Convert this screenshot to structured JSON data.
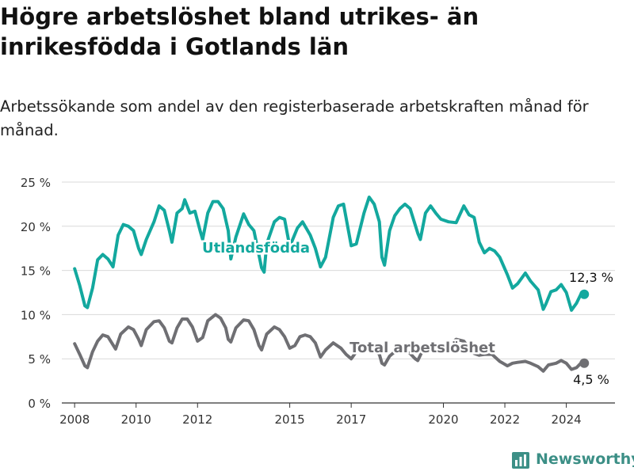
{
  "title": "Högre arbetslöshet bland utrikes- än inrikesfödda i Gotlands län",
  "subtitle": "Arbetssökande som andel av den registerbaserade arbetskraften månad för månad.",
  "brand": {
    "name": "Newsworthy",
    "color": "#3c8f86"
  },
  "colors": {
    "utlandsfodda": "#13a89e",
    "total": "#6f6f73"
  },
  "chart_data": {
    "type": "line",
    "title": "Högre arbetslöshet bland utrikes- än inrikesfödda i Gotlands län",
    "subtitle": "Arbetssökande som andel av den registerbaserade arbetskraften månad för månad.",
    "xlabel": "",
    "ylabel": "",
    "x_ticks": [
      "2008",
      "2010",
      "2012",
      "2015",
      "2017",
      "2020",
      "2022",
      "2024"
    ],
    "y_ticks": [
      "0 %",
      "5 %",
      "10 %",
      "15 %",
      "20 %",
      "25 %"
    ],
    "ylim": [
      0,
      25
    ],
    "xlim": [
      "2007-08",
      "2025-08"
    ],
    "grid": true,
    "legend": "inline labels",
    "series": [
      {
        "name": "Utlandsfödda",
        "end_label": "12,3 %",
        "points": [
          [
            "2008-01",
            15.2
          ],
          [
            "2008-03",
            13.3
          ],
          [
            "2008-05",
            11.0
          ],
          [
            "2008-06",
            10.8
          ],
          [
            "2008-08",
            13.0
          ],
          [
            "2008-10",
            16.2
          ],
          [
            "2008-12",
            16.8
          ],
          [
            "2009-02",
            16.3
          ],
          [
            "2009-04",
            15.4
          ],
          [
            "2009-06",
            19.0
          ],
          [
            "2009-08",
            20.2
          ],
          [
            "2009-10",
            20.0
          ],
          [
            "2009-12",
            19.5
          ],
          [
            "2010-02",
            17.5
          ],
          [
            "2010-03",
            16.8
          ],
          [
            "2010-05",
            18.5
          ],
          [
            "2010-08",
            20.5
          ],
          [
            "2010-10",
            22.3
          ],
          [
            "2010-12",
            21.8
          ],
          [
            "2011-02",
            19.5
          ],
          [
            "2011-03",
            18.2
          ],
          [
            "2011-05",
            21.5
          ],
          [
            "2011-07",
            22.0
          ],
          [
            "2011-08",
            23.0
          ],
          [
            "2011-10",
            21.5
          ],
          [
            "2011-12",
            21.7
          ],
          [
            "2012-02",
            19.5
          ],
          [
            "2012-03",
            18.5
          ],
          [
            "2012-05",
            21.5
          ],
          [
            "2012-07",
            22.8
          ],
          [
            "2012-09",
            22.8
          ],
          [
            "2012-11",
            22.0
          ],
          [
            "2013-01",
            19.5
          ],
          [
            "2013-02",
            16.3
          ],
          [
            "2013-04",
            18.8
          ],
          [
            "2013-07",
            21.4
          ],
          [
            "2013-09",
            20.2
          ],
          [
            "2013-11",
            19.5
          ],
          [
            "2014-02",
            15.3
          ],
          [
            "2014-03",
            14.8
          ],
          [
            "2014-04",
            18.0
          ],
          [
            "2014-07",
            20.5
          ],
          [
            "2014-09",
            21.0
          ],
          [
            "2014-11",
            20.8
          ],
          [
            "2015-01",
            17.7
          ],
          [
            "2015-04",
            19.8
          ],
          [
            "2015-06",
            20.5
          ],
          [
            "2015-09",
            19.0
          ],
          [
            "2015-11",
            17.5
          ],
          [
            "2016-01",
            15.4
          ],
          [
            "2016-03",
            16.5
          ],
          [
            "2016-06",
            21.0
          ],
          [
            "2016-08",
            22.3
          ],
          [
            "2016-10",
            22.5
          ],
          [
            "2017-01",
            17.8
          ],
          [
            "2017-03",
            18.0
          ],
          [
            "2017-06",
            21.5
          ],
          [
            "2017-08",
            23.3
          ],
          [
            "2017-10",
            22.5
          ],
          [
            "2017-12",
            20.5
          ],
          [
            "2018-01",
            16.5
          ],
          [
            "2018-02",
            15.6
          ],
          [
            "2018-04",
            19.5
          ],
          [
            "2018-06",
            21.2
          ],
          [
            "2018-08",
            22.0
          ],
          [
            "2018-10",
            22.5
          ],
          [
            "2018-12",
            22.0
          ],
          [
            "2019-03",
            19.2
          ],
          [
            "2019-04",
            18.5
          ],
          [
            "2019-06",
            21.5
          ],
          [
            "2019-08",
            22.3
          ],
          [
            "2019-10",
            21.5
          ],
          [
            "2019-12",
            20.8
          ],
          [
            "2020-03",
            20.5
          ],
          [
            "2020-06",
            20.4
          ],
          [
            "2020-09",
            22.3
          ],
          [
            "2020-11",
            21.3
          ],
          [
            "2021-01",
            21.0
          ],
          [
            "2021-03",
            18.2
          ],
          [
            "2021-05",
            17.0
          ],
          [
            "2021-07",
            17.5
          ],
          [
            "2021-09",
            17.2
          ],
          [
            "2021-11",
            16.5
          ],
          [
            "2022-02",
            14.5
          ],
          [
            "2022-04",
            13.0
          ],
          [
            "2022-06",
            13.5
          ],
          [
            "2022-09",
            14.7
          ],
          [
            "2022-11",
            13.8
          ],
          [
            "2023-02",
            12.8
          ],
          [
            "2023-04",
            10.6
          ],
          [
            "2023-05",
            11.2
          ],
          [
            "2023-07",
            12.6
          ],
          [
            "2023-09",
            12.8
          ],
          [
            "2023-11",
            13.4
          ],
          [
            "2024-01",
            12.5
          ],
          [
            "2024-03",
            10.5
          ],
          [
            "2024-05",
            11.3
          ],
          [
            "2024-07",
            12.5
          ],
          [
            "2024-08",
            12.3
          ]
        ]
      },
      {
        "name": "Total arbetslöshet",
        "end_label": "4,5 %",
        "points": [
          [
            "2008-01",
            6.7
          ],
          [
            "2008-03",
            5.5
          ],
          [
            "2008-05",
            4.2
          ],
          [
            "2008-06",
            4.0
          ],
          [
            "2008-08",
            5.8
          ],
          [
            "2008-10",
            7.0
          ],
          [
            "2008-12",
            7.7
          ],
          [
            "2009-02",
            7.5
          ],
          [
            "2009-05",
            6.1
          ],
          [
            "2009-07",
            7.8
          ],
          [
            "2009-10",
            8.6
          ],
          [
            "2009-12",
            8.3
          ],
          [
            "2010-02",
            7.2
          ],
          [
            "2010-03",
            6.5
          ],
          [
            "2010-05",
            8.3
          ],
          [
            "2010-08",
            9.2
          ],
          [
            "2010-10",
            9.3
          ],
          [
            "2010-12",
            8.5
          ],
          [
            "2011-02",
            7.0
          ],
          [
            "2011-03",
            6.8
          ],
          [
            "2011-05",
            8.5
          ],
          [
            "2011-07",
            9.5
          ],
          [
            "2011-09",
            9.5
          ],
          [
            "2011-11",
            8.6
          ],
          [
            "2012-01",
            7.0
          ],
          [
            "2012-03",
            7.4
          ],
          [
            "2012-05",
            9.3
          ],
          [
            "2012-08",
            10.0
          ],
          [
            "2012-10",
            9.6
          ],
          [
            "2012-12",
            8.5
          ],
          [
            "2013-01",
            7.2
          ],
          [
            "2013-02",
            6.9
          ],
          [
            "2013-04",
            8.5
          ],
          [
            "2013-07",
            9.4
          ],
          [
            "2013-09",
            9.3
          ],
          [
            "2013-11",
            8.3
          ],
          [
            "2014-01",
            6.5
          ],
          [
            "2014-02",
            6.0
          ],
          [
            "2014-04",
            7.8
          ],
          [
            "2014-07",
            8.6
          ],
          [
            "2014-09",
            8.3
          ],
          [
            "2014-11",
            7.5
          ],
          [
            "2015-01",
            6.2
          ],
          [
            "2015-03",
            6.5
          ],
          [
            "2015-05",
            7.5
          ],
          [
            "2015-07",
            7.7
          ],
          [
            "2015-09",
            7.5
          ],
          [
            "2015-11",
            6.8
          ],
          [
            "2016-01",
            5.2
          ],
          [
            "2016-03",
            6.0
          ],
          [
            "2016-06",
            6.8
          ],
          [
            "2016-09",
            6.2
          ],
          [
            "2016-11",
            5.5
          ],
          [
            "2017-01",
            5.0
          ],
          [
            "2017-03",
            5.8
          ],
          [
            "2017-06",
            6.0
          ],
          [
            "2017-08",
            6.3
          ],
          [
            "2017-10",
            6.0
          ],
          [
            "2017-12",
            5.5
          ],
          [
            "2018-01",
            4.5
          ],
          [
            "2018-02",
            4.3
          ],
          [
            "2018-04",
            5.3
          ],
          [
            "2018-06",
            5.8
          ],
          [
            "2018-09",
            6.0
          ],
          [
            "2018-12",
            5.6
          ],
          [
            "2019-02",
            5.0
          ],
          [
            "2019-03",
            4.8
          ],
          [
            "2019-05",
            6.0
          ],
          [
            "2019-08",
            6.3
          ],
          [
            "2019-10",
            6.2
          ],
          [
            "2019-12",
            6.0
          ],
          [
            "2020-03",
            6.5
          ],
          [
            "2020-06",
            7.2
          ],
          [
            "2020-09",
            7.0
          ],
          [
            "2020-11",
            6.2
          ],
          [
            "2021-01",
            5.6
          ],
          [
            "2021-03",
            5.4
          ],
          [
            "2021-05",
            5.5
          ],
          [
            "2021-08",
            5.5
          ],
          [
            "2021-11",
            4.7
          ],
          [
            "2022-02",
            4.2
          ],
          [
            "2022-04",
            4.5
          ],
          [
            "2022-06",
            4.6
          ],
          [
            "2022-09",
            4.7
          ],
          [
            "2022-11",
            4.5
          ],
          [
            "2023-02",
            4.1
          ],
          [
            "2023-04",
            3.6
          ],
          [
            "2023-06",
            4.3
          ],
          [
            "2023-09",
            4.5
          ],
          [
            "2023-11",
            4.8
          ],
          [
            "2024-01",
            4.5
          ],
          [
            "2024-03",
            3.8
          ],
          [
            "2024-05",
            4.0
          ],
          [
            "2024-07",
            4.6
          ],
          [
            "2024-08",
            4.5
          ]
        ]
      }
    ]
  }
}
